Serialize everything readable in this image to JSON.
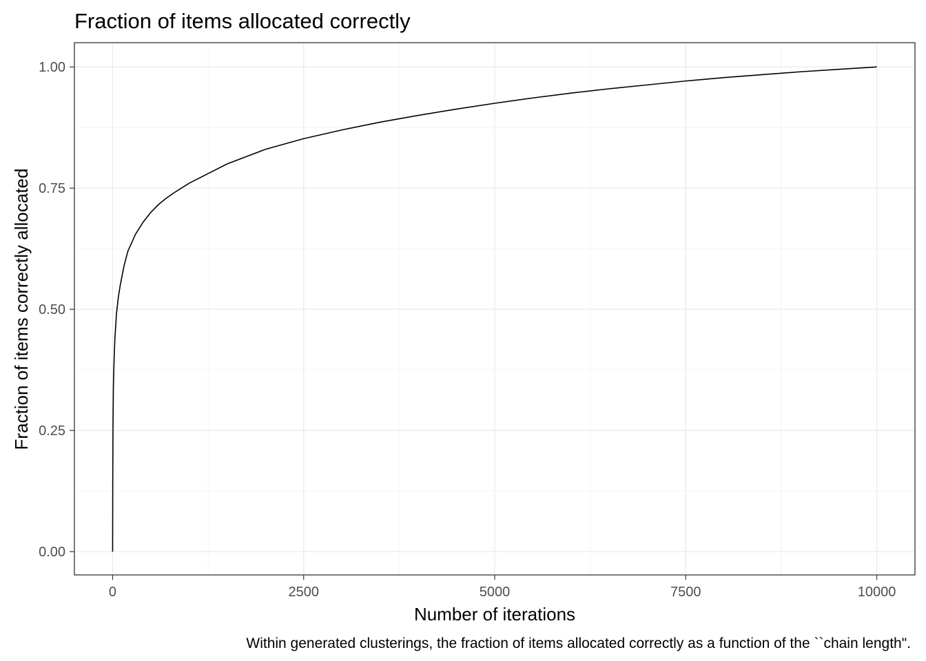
{
  "chart_data": {
    "type": "line",
    "title": "Fraction of items allocated correctly",
    "xlabel": "Number of iterations",
    "ylabel": "Fraction of items correctly allocated",
    "caption": "Within generated clusterings, the fraction of items allocated correctly as a function of the ``chain length\".",
    "xlim": [
      -500,
      10500
    ],
    "ylim": [
      -0.048,
      1.05
    ],
    "x_ticks": [
      0,
      2500,
      5000,
      7500,
      10000
    ],
    "x_tick_labels": [
      "0",
      "2500",
      "5000",
      "7500",
      "10000"
    ],
    "y_ticks": [
      0,
      0.25,
      0.5,
      0.75,
      1
    ],
    "y_tick_labels": [
      "0.00",
      "0.25",
      "0.50",
      "0.75",
      "1.00"
    ],
    "grid": true,
    "series": [
      {
        "color": "#000000",
        "x": [
          0,
          2,
          5,
          10,
          20,
          30,
          50,
          75,
          100,
          150,
          200,
          300,
          400,
          500,
          600,
          700,
          800,
          1000,
          1250,
          1500,
          2000,
          2500,
          3000,
          3500,
          4000,
          4500,
          5000,
          5500,
          6000,
          6500,
          7000,
          7500,
          8000,
          8500,
          9000,
          9500,
          10000
        ],
        "y": [
          0.0,
          0.15,
          0.26,
          0.34,
          0.4,
          0.44,
          0.49,
          0.525,
          0.55,
          0.59,
          0.62,
          0.655,
          0.68,
          0.7,
          0.716,
          0.729,
          0.74,
          0.76,
          0.78,
          0.8,
          0.83,
          0.852,
          0.87,
          0.886,
          0.9,
          0.913,
          0.925,
          0.936,
          0.946,
          0.955,
          0.963,
          0.971,
          0.978,
          0.984,
          0.99,
          0.995,
          1.0
        ]
      }
    ]
  }
}
